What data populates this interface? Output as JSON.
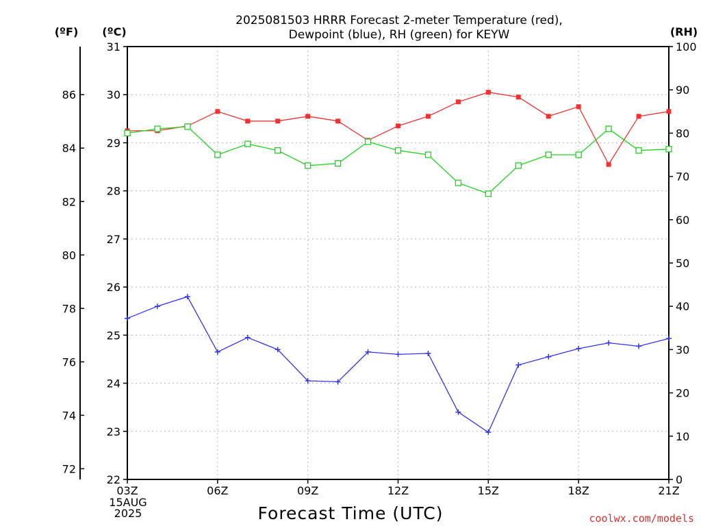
{
  "chart_data": {
    "type": "line",
    "title_line1": "2025081503 HRRR Forecast 2-meter Temperature (red),",
    "title_line2": "Dewpoint (blue), RH (green) for KEYW",
    "xlabel": "Forecast Time (UTC)",
    "credit": "coolwx.com/models",
    "units": {
      "fahrenheit": "(ºF)",
      "celsius": "(ºC)",
      "rh": "(RH)"
    },
    "x_tick_labels": [
      "03Z",
      "06Z",
      "09Z",
      "12Z",
      "15Z",
      "18Z",
      "21Z"
    ],
    "date_label_1": "15AUG",
    "date_label_2": "2025",
    "x_hours": [
      3,
      4,
      5,
      6,
      7,
      8,
      9,
      10,
      11,
      12,
      13,
      14,
      15,
      16,
      17,
      18,
      19,
      20,
      21
    ],
    "celsius_axis": {
      "min": 22,
      "max": 31,
      "ticks": [
        22,
        23,
        24,
        25,
        26,
        27,
        28,
        29,
        30,
        31
      ]
    },
    "fahrenheit_axis": {
      "ticks": [
        72,
        74,
        76,
        78,
        80,
        82,
        84,
        86
      ]
    },
    "rh_axis": {
      "min": 0,
      "max": 100,
      "ticks": [
        0,
        10,
        20,
        30,
        40,
        50,
        60,
        70,
        80,
        90,
        100
      ]
    },
    "grid": true,
    "colors": {
      "temperature": "#f03232",
      "dewpoint": "#3232f0",
      "rh": "#1ed21e"
    },
    "series": [
      {
        "key": "temperature",
        "axis": "celsius",
        "marker": "filled-square",
        "values": [
          29.25,
          29.25,
          29.35,
          29.65,
          29.45,
          29.45,
          29.55,
          29.45,
          29.05,
          29.35,
          29.55,
          29.85,
          30.05,
          29.95,
          29.55,
          29.75,
          28.55,
          29.55,
          29.65
        ]
      },
      {
        "key": "dewpoint",
        "axis": "celsius",
        "marker": "plus",
        "values": [
          25.35,
          25.6,
          25.8,
          24.65,
          24.95,
          24.7,
          24.05,
          24.03,
          24.65,
          24.6,
          24.62,
          23.4,
          22.98,
          24.38,
          24.55,
          24.72,
          24.84,
          24.77,
          24.93
        ]
      },
      {
        "key": "rh",
        "axis": "rh",
        "marker": "open-square",
        "values": [
          80,
          81,
          81.5,
          75,
          77.5,
          76,
          72.5,
          73,
          78,
          76,
          75,
          68.5,
          66,
          72.5,
          75,
          75,
          81,
          76,
          76.3
        ]
      }
    ]
  }
}
